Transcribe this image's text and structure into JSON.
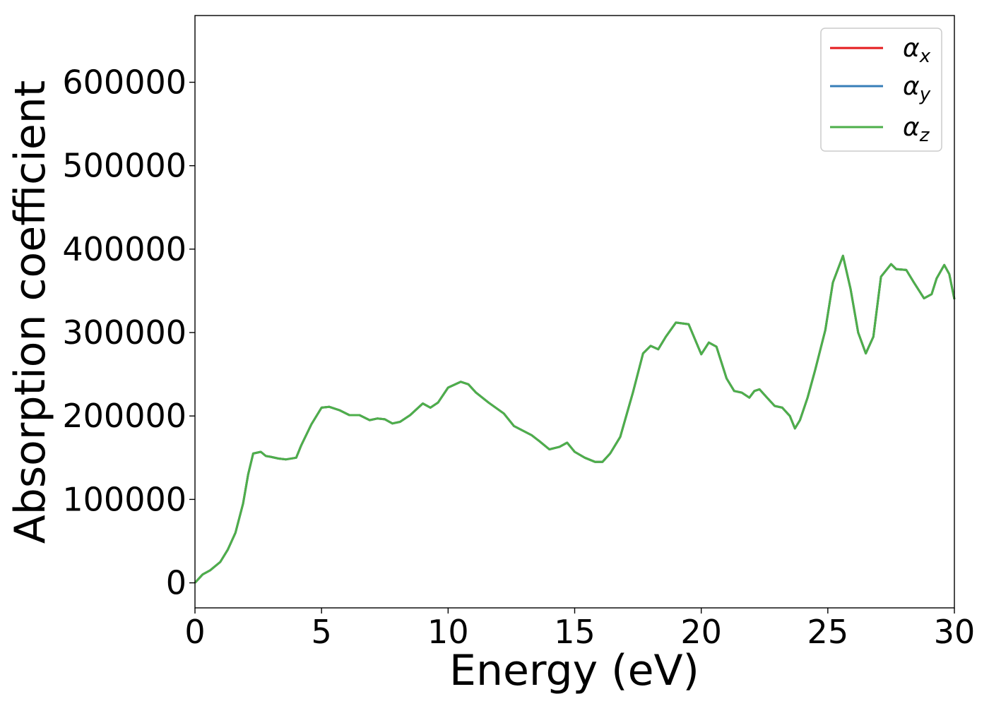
{
  "chart_data": {
    "type": "line",
    "title": "",
    "xlabel": "Energy (eV)",
    "ylabel": "Absorption coefficient",
    "xlim": [
      0,
      30
    ],
    "ylim": [
      -30000,
      680000
    ],
    "grid": false,
    "legend_position": "top-right",
    "x_ticks": [
      0,
      5,
      10,
      15,
      20,
      25,
      30
    ],
    "x_tick_labels": [
      "0",
      "5",
      "10",
      "15",
      "20",
      "25",
      "30"
    ],
    "y_ticks": [
      0,
      100000,
      200000,
      300000,
      400000,
      500000,
      600000
    ],
    "y_tick_labels": [
      "0",
      "100000",
      "200000",
      "300000",
      "400000",
      "500000",
      "600000"
    ],
    "x": [
      0,
      0.3,
      0.6,
      1.0,
      1.3,
      1.6,
      1.9,
      2.1,
      2.3,
      2.6,
      2.8,
      3.0,
      3.3,
      3.6,
      4.0,
      4.2,
      4.6,
      5.0,
      5.3,
      5.7,
      6.1,
      6.5,
      6.9,
      7.2,
      7.5,
      7.8,
      8.1,
      8.5,
      9.0,
      9.3,
      9.6,
      10.0,
      10.5,
      10.8,
      11.1,
      11.6,
      12.2,
      12.6,
      13.3,
      13.6,
      14.0,
      14.4,
      14.7,
      15.0,
      15.4,
      15.8,
      16.1,
      16.4,
      16.8,
      17.3,
      17.7,
      18.0,
      18.3,
      18.6,
      19.0,
      19.5,
      20.0,
      20.3,
      20.6,
      21.0,
      21.3,
      21.6,
      21.9,
      22.1,
      22.3,
      22.6,
      22.9,
      23.2,
      23.5,
      23.7,
      23.9,
      24.2,
      24.5,
      24.9,
      25.2,
      25.6,
      25.9,
      26.2,
      26.5,
      26.8,
      27.1,
      27.5,
      27.7,
      28.1,
      28.4,
      28.8,
      29.1,
      29.3,
      29.6,
      29.8,
      30.0
    ],
    "series": [
      {
        "name": "α_x",
        "color": "#e41a1c",
        "y": [
          0,
          10000,
          15000,
          25000,
          40000,
          60000,
          95000,
          130000,
          155000,
          157000,
          152000,
          151000,
          149000,
          148000,
          150000,
          165000,
          190000,
          210000,
          211000,
          207000,
          201000,
          201000,
          195000,
          197000,
          196000,
          191000,
          193000,
          201000,
          215000,
          210000,
          216000,
          234000,
          241000,
          238000,
          228000,
          216000,
          203000,
          188000,
          177000,
          170000,
          160000,
          163000,
          168000,
          157000,
          150000,
          145000,
          145000,
          155000,
          175000,
          228000,
          275000,
          284000,
          280000,
          295000,
          312000,
          310000,
          274000,
          288000,
          283000,
          245000,
          230000,
          228000,
          222000,
          230000,
          232000,
          222000,
          212000,
          210000,
          200000,
          185000,
          195000,
          222000,
          255000,
          303000,
          360000,
          392000,
          352000,
          300000,
          275000,
          295000,
          367000,
          382000,
          376000,
          375000,
          360000,
          341000,
          346000,
          365000,
          381000,
          370000,
          340000
        ]
      },
      {
        "name": "α_y",
        "color": "#377eb8",
        "y": [
          0,
          10000,
          15000,
          25000,
          40000,
          60000,
          95000,
          130000,
          155000,
          157000,
          152000,
          151000,
          149000,
          148000,
          150000,
          165000,
          190000,
          210000,
          211000,
          207000,
          201000,
          201000,
          195000,
          197000,
          196000,
          191000,
          193000,
          201000,
          215000,
          210000,
          216000,
          234000,
          241000,
          238000,
          228000,
          216000,
          203000,
          188000,
          177000,
          170000,
          160000,
          163000,
          168000,
          157000,
          150000,
          145000,
          145000,
          155000,
          175000,
          228000,
          275000,
          284000,
          280000,
          295000,
          312000,
          310000,
          274000,
          288000,
          283000,
          245000,
          230000,
          228000,
          222000,
          230000,
          232000,
          222000,
          212000,
          210000,
          200000,
          185000,
          195000,
          222000,
          255000,
          303000,
          360000,
          392000,
          352000,
          300000,
          275000,
          295000,
          367000,
          382000,
          376000,
          375000,
          360000,
          341000,
          346000,
          365000,
          381000,
          370000,
          340000
        ]
      },
      {
        "name": "α_z",
        "color": "#4daf4a",
        "y": [
          0,
          10000,
          15000,
          25000,
          40000,
          60000,
          95000,
          130000,
          155000,
          157000,
          152000,
          151000,
          149000,
          148000,
          150000,
          165000,
          190000,
          210000,
          211000,
          207000,
          201000,
          201000,
          195000,
          197000,
          196000,
          191000,
          193000,
          201000,
          215000,
          210000,
          216000,
          234000,
          241000,
          238000,
          228000,
          216000,
          203000,
          188000,
          177000,
          170000,
          160000,
          163000,
          168000,
          157000,
          150000,
          145000,
          145000,
          155000,
          175000,
          228000,
          275000,
          284000,
          280000,
          295000,
          312000,
          310000,
          274000,
          288000,
          283000,
          245000,
          230000,
          228000,
          222000,
          230000,
          232000,
          222000,
          212000,
          210000,
          200000,
          185000,
          195000,
          222000,
          255000,
          303000,
          360000,
          392000,
          352000,
          300000,
          275000,
          295000,
          367000,
          382000,
          376000,
          375000,
          360000,
          341000,
          346000,
          365000,
          381000,
          370000,
          340000
        ]
      }
    ]
  }
}
